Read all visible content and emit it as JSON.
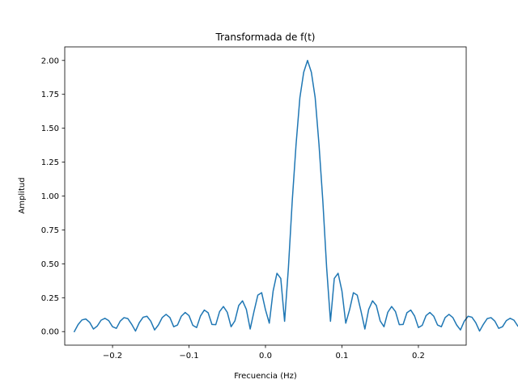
{
  "chart_data": {
    "type": "line",
    "title": "Transformada de f(t)",
    "xlabel": "Frecuencia (Hz)",
    "ylabel": "Amplitud",
    "xlim": [
      -0.2625,
      0.2625
    ],
    "ylim": [
      -0.1,
      2.1
    ],
    "xticks": [
      -0.2,
      -0.1,
      0.0,
      0.1,
      0.2
    ],
    "xtick_labels": [
      "−0.2",
      "−0.1",
      "0.0",
      "0.1",
      "0.2"
    ],
    "yticks": [
      0.0,
      0.25,
      0.5,
      0.75,
      1.0,
      1.25,
      1.5,
      1.75,
      2.0
    ],
    "ytick_labels": [
      "0.00",
      "0.25",
      "0.50",
      "0.75",
      "1.00",
      "1.25",
      "1.50",
      "1.75",
      "2.00"
    ],
    "grid": false,
    "color": "#1f77b4",
    "series": [
      {
        "x_start": -0.25,
        "x_step": 0.005,
        "values": [
          0.0,
          0.052,
          0.086,
          0.093,
          0.069,
          0.019,
          0.041,
          0.084,
          0.098,
          0.081,
          0.036,
          0.024,
          0.077,
          0.103,
          0.096,
          0.054,
          0.004,
          0.066,
          0.106,
          0.113,
          0.077,
          0.012,
          0.049,
          0.104,
          0.127,
          0.104,
          0.036,
          0.049,
          0.114,
          0.141,
          0.118,
          0.046,
          0.03,
          0.115,
          0.159,
          0.139,
          0.053,
          0.051,
          0.148,
          0.185,
          0.143,
          0.036,
          0.079,
          0.192,
          0.227,
          0.164,
          0.019,
          0.149,
          0.269,
          0.287,
          0.161,
          0.062,
          0.299,
          0.43,
          0.392,
          0.076,
          0.471,
          0.964,
          1.38,
          1.725,
          1.913,
          2.0,
          1.913,
          1.725,
          1.38,
          0.964,
          0.471,
          0.076,
          0.392,
          0.43,
          0.299,
          0.062,
          0.161,
          0.287,
          0.269,
          0.149,
          0.019,
          0.164,
          0.227,
          0.192,
          0.079,
          0.036,
          0.143,
          0.185,
          0.148,
          0.051,
          0.053,
          0.139,
          0.159,
          0.115,
          0.03,
          0.046,
          0.118,
          0.141,
          0.114,
          0.049,
          0.036,
          0.104,
          0.127,
          0.104,
          0.049,
          0.012,
          0.077,
          0.113,
          0.106,
          0.066,
          0.004,
          0.054,
          0.096,
          0.103,
          0.077,
          0.024,
          0.036,
          0.081,
          0.098,
          0.084,
          0.041,
          0.019,
          0.069,
          0.093,
          0.086,
          0.052
        ]
      }
    ]
  }
}
